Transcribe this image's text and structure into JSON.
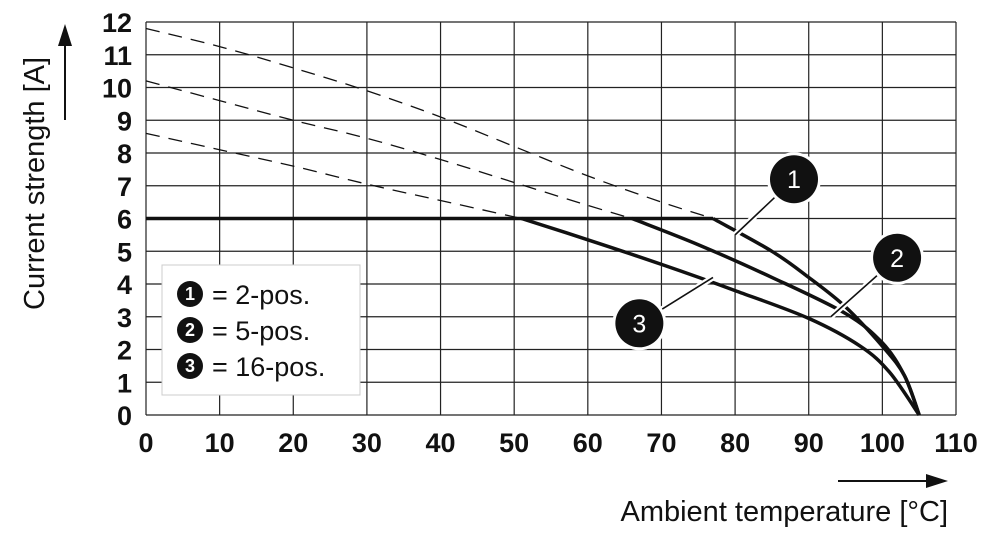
{
  "chart_data": {
    "type": "line",
    "xlabel": "Ambient temperature [°C]",
    "ylabel": "Current strength [A]",
    "xlim": [
      0,
      110
    ],
    "ylim": [
      0,
      12
    ],
    "xticks": [
      "0",
      "10",
      "20",
      "30",
      "40",
      "50",
      "60",
      "70",
      "80",
      "90",
      "100",
      "110"
    ],
    "yticks": [
      "0",
      "1",
      "2",
      "3",
      "4",
      "5",
      "6",
      "7",
      "8",
      "9",
      "10",
      "11",
      "12"
    ],
    "grid": true,
    "current_limit": 6,
    "series": [
      {
        "name": "1",
        "legend": "= 2-pos.",
        "dashed": {
          "x": [
            0,
            10,
            20,
            30,
            40,
            50,
            60,
            70,
            77
          ],
          "y": [
            11.8,
            11.25,
            10.6,
            9.9,
            9.1,
            8.2,
            7.3,
            6.5,
            6.0
          ]
        },
        "solid": {
          "x": [
            77,
            85,
            90,
            95,
            100,
            103,
            105
          ],
          "y": [
            6.0,
            5.0,
            4.2,
            3.3,
            2.1,
            1.2,
            0
          ]
        }
      },
      {
        "name": "2",
        "legend": "= 5-pos.",
        "dashed": {
          "x": [
            0,
            10,
            20,
            30,
            40,
            50,
            60,
            66
          ],
          "y": [
            10.2,
            9.6,
            9.0,
            8.45,
            7.8,
            7.1,
            6.4,
            6.0
          ]
        },
        "solid": {
          "x": [
            66,
            75,
            85,
            95,
            100,
            103,
            105
          ],
          "y": [
            6.0,
            5.2,
            4.2,
            3.1,
            2.2,
            1.2,
            0
          ]
        }
      },
      {
        "name": "3",
        "legend": "= 16-pos.",
        "dashed": {
          "x": [
            0,
            10,
            20,
            30,
            40,
            51
          ],
          "y": [
            8.6,
            8.1,
            7.6,
            7.05,
            6.55,
            6.0
          ]
        },
        "solid": {
          "x": [
            51,
            60,
            70,
            80,
            90,
            97,
            101,
            105
          ],
          "y": [
            6.0,
            5.35,
            4.6,
            3.8,
            2.95,
            2.1,
            1.3,
            0
          ]
        }
      }
    ],
    "callouts": [
      {
        "label": "1",
        "x": 88,
        "y": 7.2,
        "leader_to": [
          80,
          5.5
        ]
      },
      {
        "label": "2",
        "x": 102,
        "y": 4.8,
        "leader_to": [
          93,
          3.0
        ]
      },
      {
        "label": "3",
        "x": 67,
        "y": 2.8,
        "leader_to": [
          77,
          4.2
        ]
      }
    ]
  }
}
